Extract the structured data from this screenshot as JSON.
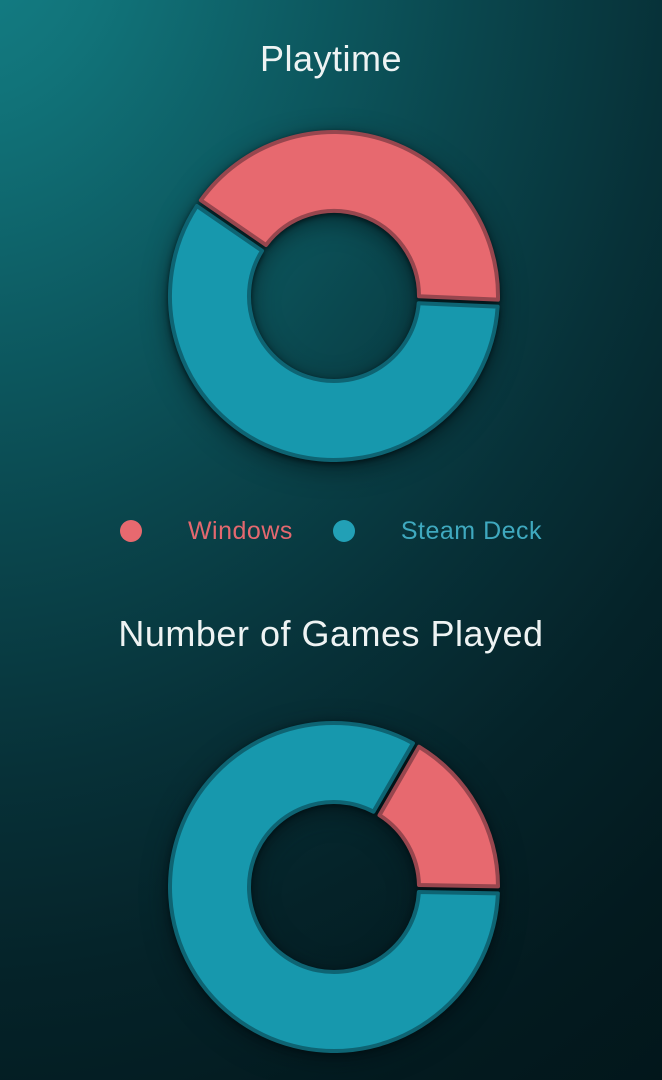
{
  "colors": {
    "background_light_corner": "#148188",
    "background_dark": "#021418",
    "title_text": "#eef3f3",
    "windows_fill": "#e7696f",
    "windows_stroke": "#97464e",
    "steam_deck_fill": "#1798ad",
    "steam_deck_stroke": "#0e6473"
  },
  "legend": {
    "items": [
      {
        "label": "Windows",
        "color": "#e4686f",
        "dot_color": "#e7696f"
      },
      {
        "label": "Steam Deck",
        "color": "#3fa9bf",
        "dot_color": "#22a0b6"
      }
    ]
  },
  "chart_data": [
    {
      "type": "doughnut",
      "title": "Playtime",
      "categories": [
        "Windows",
        "Steam Deck"
      ],
      "values_pct": [
        41,
        59
      ],
      "legend_position": "below",
      "geometry": {
        "outer_radius_px": 164,
        "inner_radius_px": 85,
        "direction": "clockwise"
      },
      "segments": [
        {
          "label": "Windows",
          "start_deg": 145.5,
          "end_deg": -2.5,
          "fill": "#e7696f",
          "stroke": "#97464e"
        },
        {
          "label": "Steam Deck",
          "start_deg": -2.5,
          "end_deg": -214.5,
          "fill": "#1798ad",
          "stroke": "#0e6473"
        }
      ]
    },
    {
      "type": "doughnut",
      "title": "Number of Games Played",
      "categories": [
        "Windows",
        "Steam Deck"
      ],
      "values_pct": [
        16.7,
        83.3
      ],
      "legend_position": "shared-above",
      "geometry": {
        "outer_radius_px": 164,
        "inner_radius_px": 85,
        "direction": "clockwise"
      },
      "segments": [
        {
          "label": "Windows",
          "start_deg": 60,
          "end_deg": -1,
          "fill": "#e7696f",
          "stroke": "#97464e"
        },
        {
          "label": "Steam Deck",
          "start_deg": -1,
          "end_deg": -300,
          "fill": "#1798ad",
          "stroke": "#0e6473"
        }
      ]
    }
  ]
}
